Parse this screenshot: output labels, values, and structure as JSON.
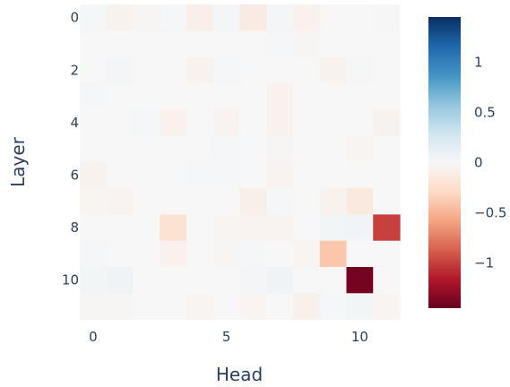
{
  "chart_data": {
    "type": "heatmap",
    "xlabel": "Head",
    "ylabel": "Layer",
    "x_tick_labels": [
      "0",
      "5",
      "10"
    ],
    "x_tick_values": [
      0,
      5,
      10
    ],
    "y_tick_labels": [
      "0",
      "2",
      "4",
      "6",
      "8",
      "10"
    ],
    "y_tick_values": [
      0,
      2,
      4,
      6,
      8,
      10
    ],
    "n_rows": 12,
    "n_cols": 12,
    "colorscale": "RdBu",
    "zmin": -1.45,
    "zmax": 1.45,
    "colorbar_tick_labels": [
      "1",
      "0.5",
      "0",
      "−0.5",
      "−1"
    ],
    "colorbar_tick_values": [
      1,
      0.5,
      0,
      -0.5,
      -1
    ],
    "values": [
      [
        0.02,
        -0.05,
        -0.02,
        0.02,
        -0.08,
        0.03,
        -0.12,
        0.03,
        -0.06,
        0.0,
        0.0,
        0.01
      ],
      [
        0.0,
        0.0,
        0.0,
        0.0,
        0.0,
        0.0,
        0.0,
        0.02,
        -0.02,
        0.0,
        0.0,
        0.0
      ],
      [
        0.0,
        0.03,
        0.0,
        0.0,
        -0.05,
        0.02,
        0.0,
        0.0,
        0.0,
        -0.05,
        0.01,
        0.0
      ],
      [
        0.02,
        0.0,
        0.0,
        0.0,
        0.0,
        0.0,
        0.0,
        -0.06,
        0.0,
        0.0,
        0.0,
        0.0
      ],
      [
        0.0,
        0.0,
        0.02,
        -0.06,
        0.0,
        -0.04,
        0.0,
        -0.06,
        0.0,
        0.0,
        0.0,
        -0.05
      ],
      [
        0.0,
        0.0,
        0.0,
        0.0,
        0.0,
        0.02,
        0.0,
        -0.02,
        0.0,
        0.0,
        -0.03,
        0.0
      ],
      [
        -0.05,
        0.0,
        0.0,
        0.0,
        0.02,
        0.02,
        0.0,
        -0.04,
        0.0,
        0.0,
        0.0,
        0.0
      ],
      [
        -0.03,
        -0.04,
        0.0,
        0.0,
        0.0,
        0.0,
        -0.08,
        0.02,
        0.0,
        -0.05,
        -0.15,
        0.0
      ],
      [
        0.0,
        0.0,
        0.0,
        -0.22,
        0.0,
        -0.03,
        -0.04,
        -0.04,
        0.0,
        0.04,
        0.05,
        -1.0
      ],
      [
        0.02,
        0.0,
        0.0,
        -0.06,
        0.0,
        -0.02,
        0.02,
        0.0,
        -0.03,
        -0.4,
        0.0,
        0.0
      ],
      [
        0.04,
        0.06,
        0.0,
        0.0,
        0.0,
        0.0,
        0.03,
        0.06,
        0.0,
        0.0,
        -1.4,
        0.0
      ],
      [
        -0.02,
        -0.02,
        0.0,
        0.0,
        -0.03,
        0.0,
        -0.03,
        0.0,
        -0.07,
        0.02,
        0.04,
        -0.03
      ]
    ]
  }
}
